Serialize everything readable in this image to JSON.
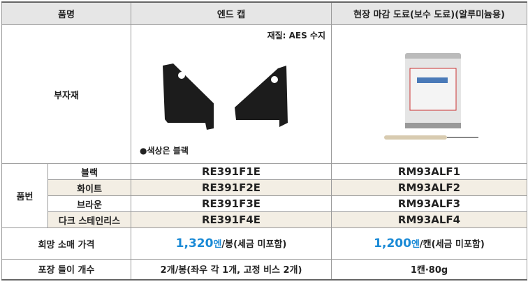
{
  "header": {
    "name": "품명",
    "end_cap": "엔드 캡",
    "paint": "현장 마감 도료(보수 도료)(알루미늄용)"
  },
  "accessory": {
    "label": "부자재",
    "material": "재질: AES 수지",
    "color_note": "●색상은 블랙"
  },
  "part_numbers": {
    "label": "품번",
    "rows": [
      [
        "블랙",
        "RE391F1E",
        "RM93ALF1"
      ],
      [
        "화이트",
        "RE391F2E",
        "RM93ALF2"
      ],
      [
        "브라운",
        "RE391F3E",
        "RM93ALF3"
      ],
      [
        "다크 스테인리스",
        "RE391F4E",
        "RM93ALF4"
      ]
    ]
  },
  "price": {
    "label": "희망 소매 가격",
    "end_cap": {
      "amount": "1,320",
      "unit": "엔",
      "suffix": "/봉(세금 미포함)"
    },
    "paint": {
      "amount": "1,200",
      "unit": "엔",
      "suffix": "/캔(세금 미포함)"
    }
  },
  "packaging": {
    "label": "포장 들이 개수",
    "end_cap": "2개/봉(좌우 각 1개, 고정 비스 2개)",
    "paint": "1캔·80g"
  }
}
